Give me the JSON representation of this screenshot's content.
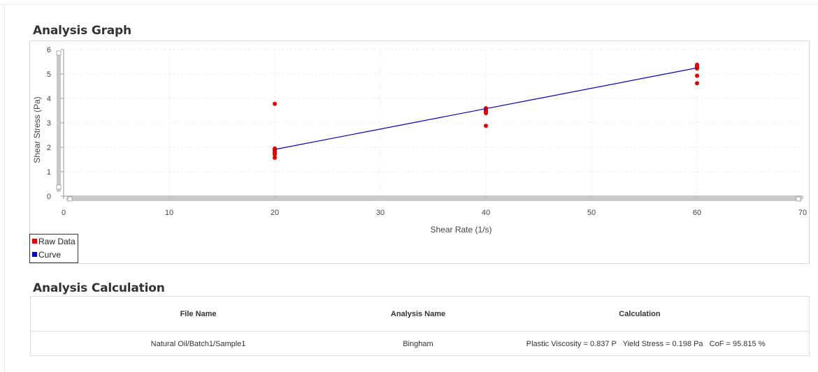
{
  "graph_section": {
    "title": "Analysis Graph"
  },
  "calc_section": {
    "title": "Analysis Calculation"
  },
  "chart_data": {
    "type": "scatter",
    "xlabel": "Shear Rate (1/s)",
    "ylabel": "Shear Stress (Pa)",
    "xlim": [
      0,
      70
    ],
    "ylim": [
      0,
      6
    ],
    "xticks": [
      0,
      10,
      20,
      30,
      40,
      50,
      60,
      70
    ],
    "yticks": [
      0,
      1,
      2,
      3,
      4,
      5,
      6
    ],
    "grid": true,
    "legend_position": "bottom-left",
    "series": [
      {
        "name": "Raw Data",
        "color": "#e60000",
        "mode": "markers",
        "points": [
          [
            20,
            3.78
          ],
          [
            20,
            1.95
          ],
          [
            20,
            1.9
          ],
          [
            20,
            1.85
          ],
          [
            20,
            1.8
          ],
          [
            20,
            1.75
          ],
          [
            20,
            1.7
          ],
          [
            20,
            1.57
          ],
          [
            40,
            3.6
          ],
          [
            40,
            3.55
          ],
          [
            40,
            3.5
          ],
          [
            40,
            3.45
          ],
          [
            40,
            3.4
          ],
          [
            40,
            2.88
          ],
          [
            60,
            5.38
          ],
          [
            60,
            5.33
          ],
          [
            60,
            5.28
          ],
          [
            60,
            5.23
          ],
          [
            60,
            4.93
          ],
          [
            60,
            4.62
          ]
        ]
      },
      {
        "name": "Curve",
        "color": "#0000cc",
        "mode": "line",
        "points": [
          [
            20,
            1.91
          ],
          [
            40,
            3.58
          ],
          [
            60,
            5.25
          ]
        ]
      }
    ]
  },
  "calc_table": {
    "headers": [
      "File Name",
      "Analysis Name",
      "Calculation"
    ],
    "rows": [
      [
        "Natural Oil/Batch1/Sample1",
        "Bingham",
        "Plastic Viscosity = 0.837 P   Yield Stress = 0.198 Pa   CoF = 95.815 %"
      ]
    ]
  }
}
